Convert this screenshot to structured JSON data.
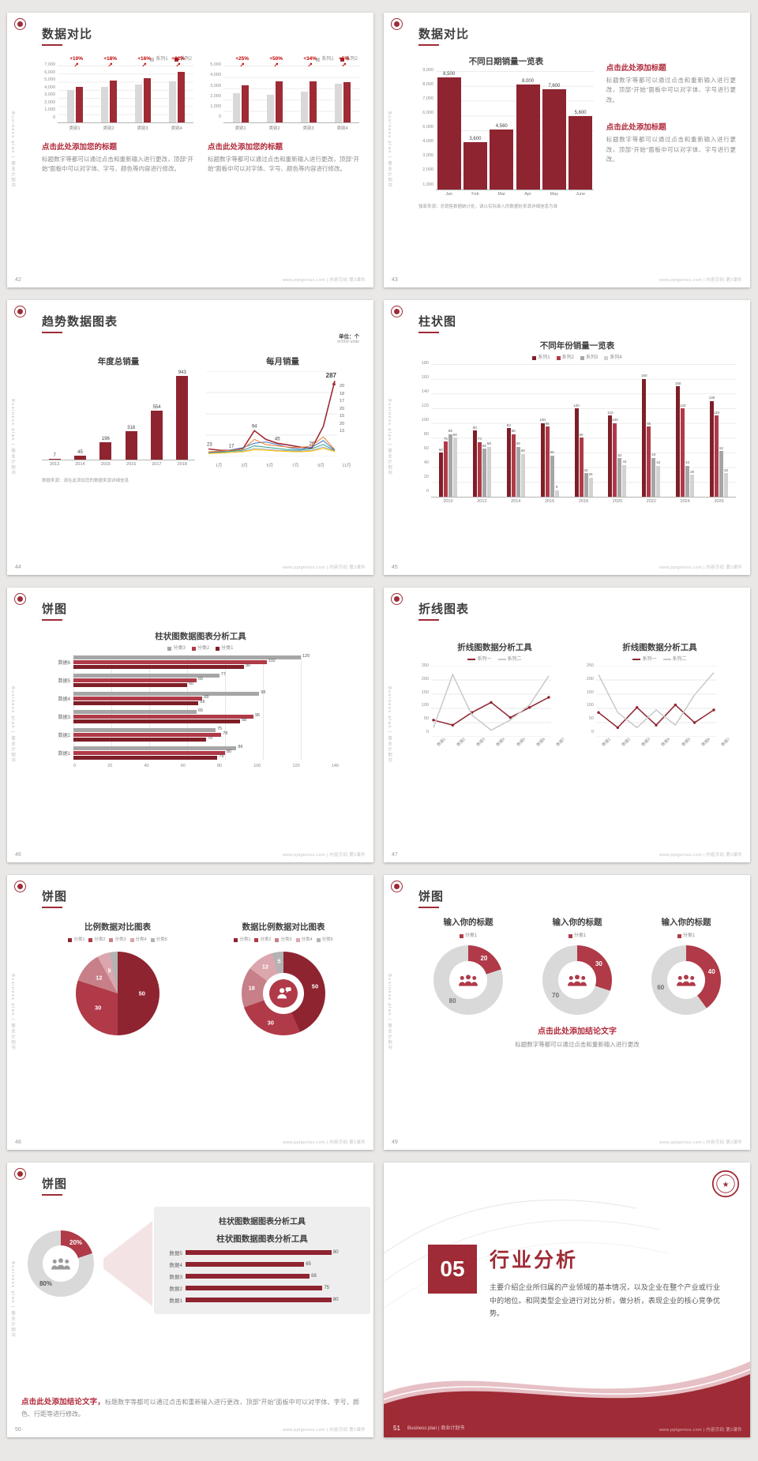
{
  "page": {
    "vertical_text": "Business plan | 商业计划书",
    "footer_text": "www.pptgenius.com | 内容页码 第2课件"
  },
  "slides": [
    {
      "number": "42",
      "title": "数据对比",
      "charts": [
        {
          "legend": [
            "系列1",
            "系列2"
          ],
          "legend_colors": [
            "#c9c9c9",
            "#9e2b35"
          ],
          "yticks": [
            "7,000",
            "6,000",
            "5,000",
            "4,000",
            "3,000",
            "2,000",
            "1,000",
            "0"
          ],
          "ymax": 7000,
          "categories": [
            "类别1",
            "类别2",
            "类别3",
            "类别4"
          ],
          "series": [
            {
              "name": "系列1",
              "color": "#d9d9d9",
              "values": [
                4000,
                4400,
                4700,
                5100
              ]
            },
            {
              "name": "系列2",
              "color": "#9e2b35",
              "values": [
                4400,
                5200,
                5450,
                6200
              ]
            }
          ],
          "percents": [
            "+10%",
            "+18%",
            "+16%",
            "+22%"
          ]
        },
        {
          "legend": [
            "系列1",
            "系列2"
          ],
          "legend_colors": [
            "#c9c9c9",
            "#9e2b35"
          ],
          "yticks": [
            "5,000",
            "4,000",
            "3,000",
            "2,000",
            "1,000",
            "0"
          ],
          "ymax": 5000,
          "categories": [
            "类别1",
            "类别2",
            "类别3",
            "类别4"
          ],
          "series": [
            {
              "name": "系列1",
              "color": "#d9d9d9",
              "values": [
                2600,
                2400,
                2700,
                3400
              ]
            },
            {
              "name": "系列2",
              "color": "#9e2b35",
              "values": [
                3250,
                3600,
                3620,
                3570
              ]
            }
          ],
          "percents": [
            "+25%",
            "+50%",
            "+34%",
            "+5%"
          ]
        }
      ],
      "blocks": [
        {
          "heading": "点击此处添加您的标题",
          "body": "标题数字等都可以通过点击和重新输入进行更改，顶部“开始”面板中可以对字体、字号、颜色等内容进行修改。"
        },
        {
          "heading": "点击此处添加您的标题",
          "body": "标题数字等都可以通过点击和重新输入进行更改，顶部“开始”面板中可以对字体、字号、颜色等内容进行修改。"
        }
      ]
    },
    {
      "number": "43",
      "title": "数据对比",
      "chart": {
        "title": "不同日期销量一览表",
        "yticks": [
          "9,000",
          "8,000",
          "7,000",
          "6,000",
          "5,000",
          "4,000",
          "3,000",
          "2,000",
          "1,000"
        ],
        "ymax": 9000,
        "categories": [
          "Jan",
          "Feb",
          "Mar",
          "Apr",
          "May",
          "June"
        ],
        "series": [
          {
            "name": "销量",
            "color": "#8e2430",
            "values": [
              8500,
              3600,
              4560,
              8000,
              7600,
              5600
            ],
            "labels": [
              "8,500",
              "3,600",
              "4,560",
              "8,000",
              "7,600",
              "5,600"
            ]
          }
        ],
        "value_labels": true
      },
      "note": "独家来源：总销售数据统计处，请以实际录入的数据处来源详细信息为准",
      "blocks": [
        {
          "heading": "点击此处添加标题",
          "body": "标题数字等都可以通过点击和重新输入进行更改，顶部“开始”面板中可以对字体、字号进行更改。"
        },
        {
          "heading": "点击此处添加标题",
          "body": "标题数字等都可以通过点击和重新输入进行更改，顶部“开始”面板中可以对字体、字号进行更改。"
        }
      ]
    },
    {
      "number": "44",
      "title": "趋势数据图表",
      "unit_label": "单位：个",
      "unit_sub": "in'000 units",
      "bar_chart": {
        "title": "年度总销量",
        "ymax": 1000,
        "categories": [
          "2013",
          "2014",
          "2015",
          "2016",
          "2017",
          "2018"
        ],
        "series": [
          {
            "name": "年度总销量",
            "color": "#8e2430",
            "values": [
              7,
              45,
              196,
              318,
              554,
              943
            ]
          }
        ],
        "value_labels": true
      },
      "line_chart": {
        "title": "每月销量",
        "ymax": 300,
        "xlabels": [
          "1月",
          "3月",
          "5月",
          "7月",
          "9月",
          "11月"
        ],
        "end_labels": [
          "20",
          "18",
          "17",
          "20",
          "15",
          "20",
          "13"
        ],
        "series": [
          {
            "name": "系列1",
            "color": "#9e2b35",
            "width": 1.6,
            "arrow": true,
            "values": [
              23,
              18,
              17,
              24,
              94,
              60,
              45,
              38,
              30,
              26,
              110,
              287
            ],
            "point_labels": [
              {
                "i": 0,
                "t": "23"
              },
              {
                "i": 2,
                "t": "17"
              },
              {
                "i": 4,
                "t": "94"
              },
              {
                "i": 6,
                "t": "45"
              },
              {
                "i": 9,
                "t": "26"
              },
              {
                "i": 11,
                "t": "287",
                "big": true
              }
            ]
          },
          {
            "name": "系列2",
            "color": "#4472c4",
            "values": [
              10,
              12,
              20,
              28,
              45,
              50,
              40,
              28,
              22,
              30,
              55,
              18
            ]
          },
          {
            "name": "系列3",
            "color": "#2e9e8e",
            "values": [
              8,
              10,
              14,
              18,
              35,
              30,
              25,
              20,
              18,
              24,
              40,
              17
            ]
          },
          {
            "name": "系列4",
            "color": "#ed7d31",
            "values": [
              12,
              15,
              18,
              22,
              60,
              40,
              35,
              30,
              28,
              35,
              70,
              20
            ]
          },
          {
            "name": "系列5",
            "color": "#a5a5a5",
            "values": [
              6,
              8,
              10,
              14,
              25,
              22,
              18,
              16,
              14,
              18,
              30,
              15
            ]
          },
          {
            "name": "系列6",
            "color": "#ffc000",
            "values": [
              5,
              7,
              9,
              12,
              20,
              18,
              15,
              13,
              12,
              15,
              25,
              13
            ]
          }
        ]
      },
      "note": "数据来源：请在此添加您的数据来源详细信息"
    },
    {
      "number": "45",
      "title": "柱状图",
      "chart": {
        "title": "不同年份销量一览表",
        "legend": [
          "系列1",
          "系列2",
          "系列3",
          "系列4"
        ],
        "legend_colors": [
          "#7e1f28",
          "#b03a48",
          "#a6a6a6",
          "#d2d2d2"
        ],
        "yticks": [
          "180",
          "160",
          "140",
          "120",
          "100",
          "80",
          "60",
          "40",
          "20",
          "0"
        ],
        "ymax": 180,
        "categories": [
          "2010",
          "2012",
          "2014",
          "2016",
          "2018",
          "2020",
          "2022",
          "2024",
          "2026"
        ],
        "series": [
          {
            "name": "系列1",
            "color": "#7e1f28",
            "values": [
              60,
              90,
              93,
              100,
              120,
              110,
              160,
              150,
              130
            ]
          },
          {
            "name": "系列2",
            "color": "#b03a48",
            "values": [
              75,
              74,
              85,
              95,
              80,
              100,
              95,
              120,
              110
            ]
          },
          {
            "name": "系列3",
            "color": "#a6a6a6",
            "values": [
              85,
              65,
              68,
              56,
              32,
              52,
              53,
              42,
              62
            ]
          },
          {
            "name": "系列4",
            "color": "#d2d2d2",
            "values": [
              80,
              68,
              58,
              9,
              26,
              43,
              42,
              30,
              32
            ]
          }
        ],
        "value_labels": true
      }
    },
    {
      "number": "46",
      "title": "饼图",
      "chart": {
        "title": "柱状图数据图表分析工具",
        "legend": [
          "分类3",
          "分类2",
          "分类1"
        ],
        "legend_colors": [
          "#a6a6a6",
          "#b03a48",
          "#7e1f28"
        ],
        "categories": [
          "数据6",
          "数据5",
          "数据4",
          "数据3",
          "数据2",
          "数据1"
        ],
        "series": [
          {
            "name": "分类3",
            "color": "#a6a6a6",
            "values": [
              120,
              77,
              98,
              65,
              75,
              86
            ]
          },
          {
            "name": "分类2",
            "color": "#b03a48",
            "values": [
              102,
              65,
              68,
              95,
              78,
              80
            ]
          },
          {
            "name": "分类1",
            "color": "#7e1f28",
            "values": [
              90,
              60,
              66,
              88,
              70,
              76
            ]
          }
        ],
        "xticks": [
          "0",
          "20",
          "40",
          "60",
          "80",
          "100",
          "120",
          "140"
        ],
        "xmax": 140
      }
    },
    {
      "number": "47",
      "title": "折线图表",
      "charts": [
        {
          "title": "折线图数据分析工具",
          "legend": [
            "系列一",
            "系列二"
          ],
          "legend_colors": [
            "#8e2430",
            "#c9c9c9"
          ],
          "yticks": [
            "250",
            "200",
            "150",
            "100",
            "50",
            "0"
          ],
          "ymax": 250,
          "xlabels": [
            "数据1",
            "数据2",
            "数据3",
            "数据4",
            "数据5",
            "数据6",
            "数据7"
          ],
          "series": [
            {
              "name": "系列一",
              "color": "#8e2430",
              "width": 1.5,
              "marker": true,
              "values": [
                60,
                40,
                90,
                130,
                70,
                110,
                150
              ]
            },
            {
              "name": "系列二",
              "color": "#c9c9c9",
              "width": 1.5,
              "values": [
                30,
                240,
                80,
                20,
                60,
                120,
                235
              ]
            }
          ]
        },
        {
          "title": "折线图数据分析工具",
          "legend": [
            "系列一",
            "系列二"
          ],
          "legend_colors": [
            "#8e2430",
            "#c9c9c9"
          ],
          "yticks": [
            "250",
            "200",
            "150",
            "100",
            "50",
            "0"
          ],
          "ymax": 250,
          "xlabels": [
            "数据1",
            "数据2",
            "数据3",
            "数据4",
            "数据5",
            "数据6",
            "数据7"
          ],
          "series": [
            {
              "name": "系列一",
              "color": "#8e2430",
              "width": 1.5,
              "marker": true,
              "values": [
                90,
                30,
                110,
                40,
                120,
                50,
                100
              ]
            },
            {
              "name": "系列二",
              "color": "#c9c9c9",
              "width": 1.5,
              "values": [
                240,
                90,
                30,
                100,
                40,
                160,
                248
              ]
            }
          ]
        }
      ]
    },
    {
      "number": "48",
      "title": "饼图",
      "pies": [
        {
          "title": "比例数据对比图表",
          "legend": [
            "分类1",
            "分类2",
            "分类3",
            "分类4",
            "分类5"
          ],
          "legend_colors": [
            "#8e2430",
            "#b03a48",
            "#c77f88",
            "#dba6ad",
            "#b3b3b3"
          ],
          "type": "pie",
          "values": [
            50,
            30,
            12,
            5,
            3
          ],
          "labels": [
            "50",
            "30",
            "12",
            "5",
            ""
          ],
          "colors": [
            "#8e2430",
            "#b03a48",
            "#c77f88",
            "#dba6ad",
            "#b3b3b3"
          ]
        },
        {
          "title": "数据比例数据对比图表",
          "legend": [
            "分类1",
            "分类2",
            "分类3",
            "分类4",
            "分类5"
          ],
          "legend_colors": [
            "#8e2430",
            "#b03a48",
            "#c77f88",
            "#dba6ad",
            "#b3b3b3"
          ],
          "type": "donut",
          "values": [
            50,
            30,
            18,
            12,
            5
          ],
          "labels": [
            "50",
            "30",
            "18",
            "12",
            "5"
          ],
          "colors": [
            "#8e2430",
            "#b03a48",
            "#c77f88",
            "#dba6ad",
            "#b3b3b3"
          ],
          "icon": "person-chat"
        }
      ]
    },
    {
      "number": "49",
      "title": "饼图",
      "donuts": [
        {
          "title": "输入你的标题",
          "legend": [
            "分类1"
          ],
          "legend_colors": [
            "#b03a48"
          ],
          "type": "donut",
          "values": [
            20,
            80
          ],
          "labels": [
            "20",
            "80"
          ],
          "colors": [
            "#b03a48",
            "#d9d9d9"
          ],
          "label_colors": [
            "#ffffff",
            "#6d6d6d"
          ],
          "icon": "people-red"
        },
        {
          "title": "输入你的标题",
          "legend": [
            "分类1"
          ],
          "legend_colors": [
            "#b03a48"
          ],
          "type": "donut",
          "values": [
            30,
            70
          ],
          "labels": [
            "30",
            "70"
          ],
          "colors": [
            "#b03a48",
            "#d9d9d9"
          ],
          "label_colors": [
            "#ffffff",
            "#6d6d6d"
          ],
          "icon": "people-red"
        },
        {
          "title": "输入你的标题",
          "legend": [
            "分类1"
          ],
          "legend_colors": [
            "#b03a48"
          ],
          "type": "donut",
          "values": [
            40,
            60
          ],
          "labels": [
            "40",
            "60"
          ],
          "colors": [
            "#b03a48",
            "#d9d9d9"
          ],
          "label_colors": [
            "#ffffff",
            "#6d6d6d"
          ],
          "icon": "people-red"
        }
      ],
      "conclusion": {
        "heading": "点击此处添加结论文字",
        "body": "标题数字等都可以通过点击和重新输入进行更改"
      }
    },
    {
      "number": "50",
      "title": "饼图",
      "donut": {
        "type": "donut",
        "values": [
          20,
          80
        ],
        "labels": [
          "20%",
          "80%"
        ],
        "colors": [
          "#b03a48",
          "#d9d9d9"
        ],
        "label_colors": [
          "#ffffff",
          "#555555"
        ],
        "icon": "people-gray"
      },
      "panel": {
        "title": "柱状图数据图表分析工具",
        "categories": [
          "数据5",
          "数据4",
          "数据3",
          "数据2",
          "数据1"
        ],
        "series": [
          {
            "name": "数据",
            "color": "#8e2430",
            "values": [
              80,
              65,
              68,
              75,
              80
            ]
          }
        ],
        "xmax": 90
      },
      "conclusion": {
        "heading": "点击此处添加结论文字，",
        "body": "标题数字等都可以通过点击和重新输入进行更改，顶部“开始”面板中可以对字体、字号、颜色、行距等进行修改。"
      }
    },
    {
      "number": "51",
      "section_number": "05",
      "section_title": "行业分析",
      "body": "主要介绍企业所归属的产业领域的基本情况，以及企业在整个产业或行业中的地位。和同类型企业进行对比分析，做分析，表现企业的核心竞争优势。",
      "footer_left": "Business plan | 商业计划书"
    }
  ]
}
